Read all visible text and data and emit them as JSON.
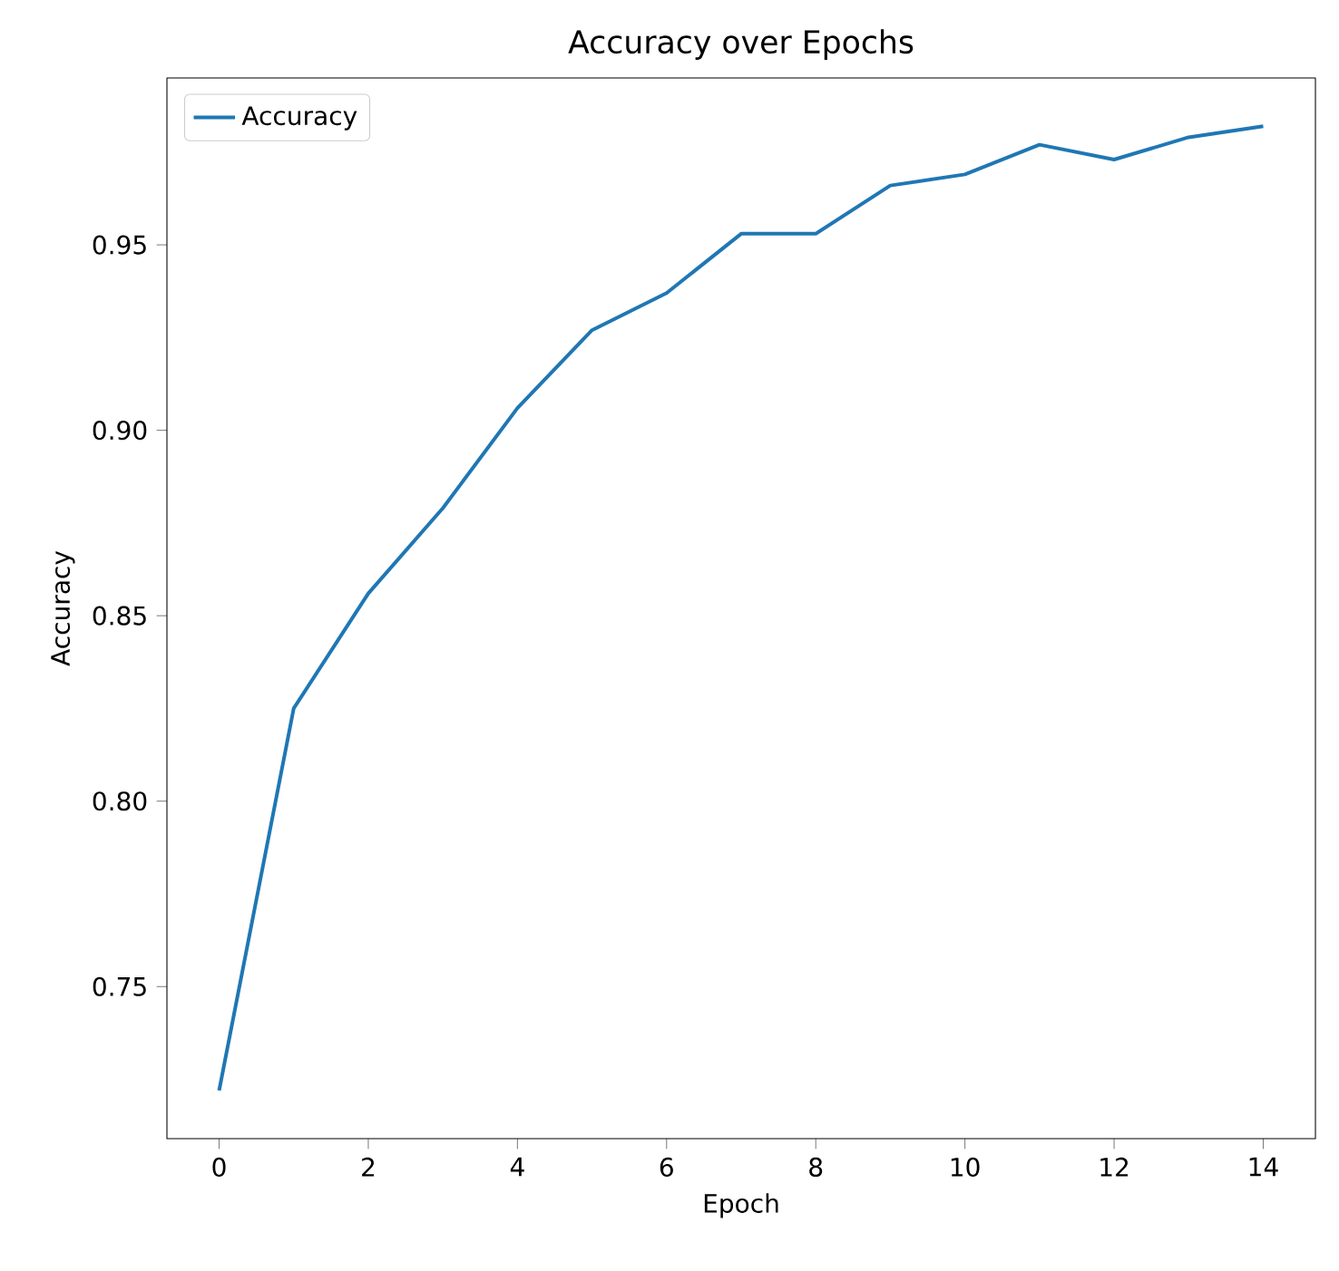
{
  "chart_data": {
    "type": "line",
    "title": "Accuracy over Epochs",
    "xlabel": "Epoch",
    "ylabel": "Accuracy",
    "x": [
      0,
      1,
      2,
      3,
      4,
      5,
      6,
      7,
      8,
      9,
      10,
      11,
      12,
      13,
      14
    ],
    "series": [
      {
        "name": "Accuracy",
        "color": "#1f77b4",
        "values": [
          0.722,
          0.825,
          0.856,
          0.879,
          0.906,
          0.927,
          0.937,
          0.953,
          0.953,
          0.966,
          0.969,
          0.977,
          0.973,
          0.979,
          0.982
        ]
      }
    ],
    "xlim": [
      -0.7,
      14.7
    ],
    "ylim": [
      0.709,
      0.995
    ],
    "xticks": [
      0,
      2,
      4,
      6,
      8,
      10,
      12,
      14
    ],
    "yticks": [
      {
        "value": 0.75,
        "label": "0.75"
      },
      {
        "value": 0.8,
        "label": "0.80"
      },
      {
        "value": 0.85,
        "label": "0.85"
      },
      {
        "value": 0.9,
        "label": "0.90"
      },
      {
        "value": 0.95,
        "label": "0.95"
      }
    ],
    "legend": "top left"
  }
}
